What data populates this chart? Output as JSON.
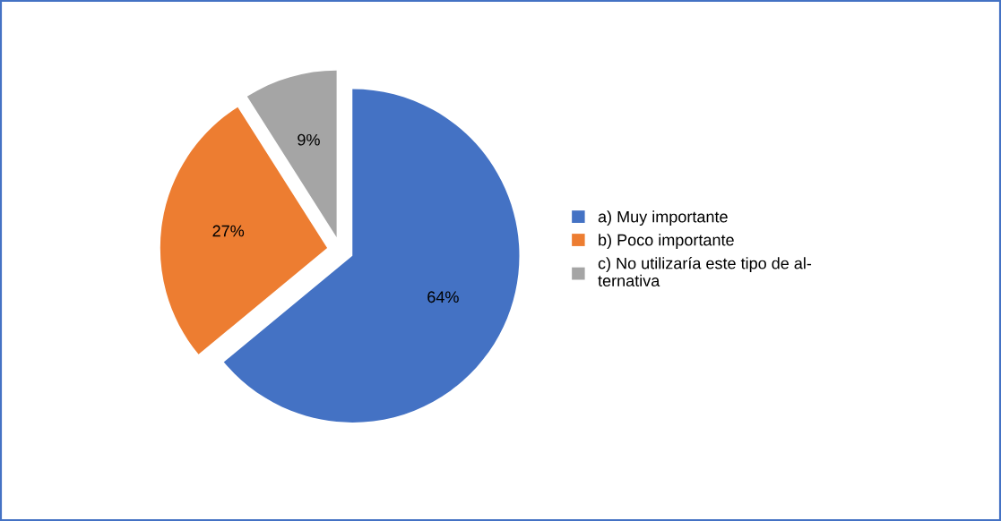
{
  "chart_data": {
    "type": "pie",
    "categories": [
      "a) Muy importante",
      "b) Poco importante",
      "c) No utilizaría este tipo de al-\nternativa"
    ],
    "values": [
      64,
      27,
      9
    ],
    "colors": [
      "#4472c4",
      "#ed7d31",
      "#a5a5a5"
    ],
    "value_labels": [
      "64%",
      "27%",
      "9%"
    ],
    "legend": "right"
  }
}
